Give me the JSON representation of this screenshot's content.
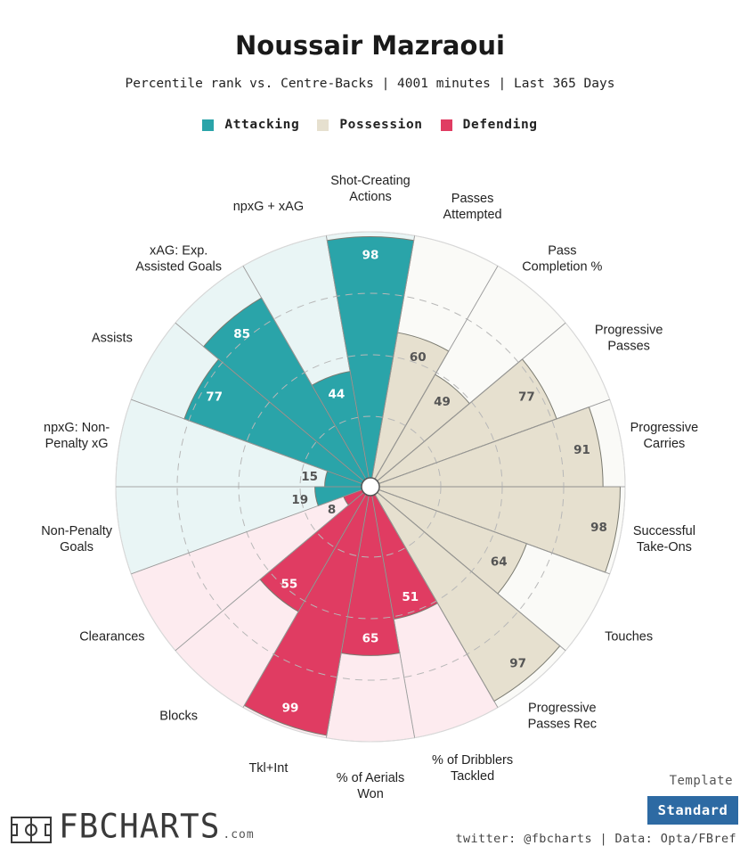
{
  "title": "Noussair Mazraoui",
  "subtitle": "Percentile rank vs. Centre-Backs | 4001 minutes | Last 365 Days",
  "legend": [
    {
      "name": "Attacking",
      "color": "#2aa4a9"
    },
    {
      "name": "Possession",
      "color": "#e6e0cf"
    },
    {
      "name": "Defending",
      "color": "#e03c62"
    }
  ],
  "chart_data": {
    "type": "polar_bar",
    "title": "Noussair Mazraoui",
    "range": [
      0,
      100
    ],
    "categories": [
      {
        "label": [
          "Shot-Creating",
          "Actions"
        ],
        "value": 98,
        "group": "Attacking"
      },
      {
        "label": [
          "Passes",
          "Attempted"
        ],
        "value": 60,
        "group": "Possession"
      },
      {
        "label": [
          "Pass",
          "Completion %"
        ],
        "value": 49,
        "group": "Possession"
      },
      {
        "label": [
          "Progressive",
          "Passes"
        ],
        "value": 77,
        "group": "Possession"
      },
      {
        "label": [
          "Progressive",
          "Carries"
        ],
        "value": 91,
        "group": "Possession"
      },
      {
        "label": [
          "Successful",
          "Take-Ons"
        ],
        "value": 98,
        "group": "Possession"
      },
      {
        "label": [
          "Touches"
        ],
        "value": 64,
        "group": "Possession"
      },
      {
        "label": [
          "Progressive",
          "Passes Rec"
        ],
        "value": 97,
        "group": "Possession"
      },
      {
        "label": [
          "% of Dribblers",
          "Tackled"
        ],
        "value": 51,
        "group": "Defending"
      },
      {
        "label": [
          "% of Aerials",
          "Won"
        ],
        "value": 65,
        "group": "Defending"
      },
      {
        "label": [
          "Tkl+Int"
        ],
        "value": 99,
        "group": "Defending"
      },
      {
        "label": [
          "Blocks"
        ],
        "value": 55,
        "group": "Defending"
      },
      {
        "label": [
          "Clearances"
        ],
        "value": 8,
        "group": "Defending"
      },
      {
        "label": [
          "Non-Penalty",
          "Goals"
        ],
        "value": 19,
        "group": "Attacking"
      },
      {
        "label": [
          "npxG: Non-",
          "Penalty xG"
        ],
        "value": 15,
        "group": "Attacking"
      },
      {
        "label": [
          "Assists"
        ],
        "value": 77,
        "group": "Attacking"
      },
      {
        "label": [
          "xAG: Exp.",
          "Assisted Goals"
        ],
        "value": 85,
        "group": "Attacking"
      },
      {
        "label": [
          "npxG + xAG"
        ],
        "value": 44,
        "group": "Attacking"
      }
    ]
  },
  "template": {
    "label": "Template",
    "button": "Standard"
  },
  "credit": "twitter: @fbcharts | Data: Opta/FBref",
  "logo": {
    "text": "FBCHARTS",
    "suffix": ".com"
  }
}
